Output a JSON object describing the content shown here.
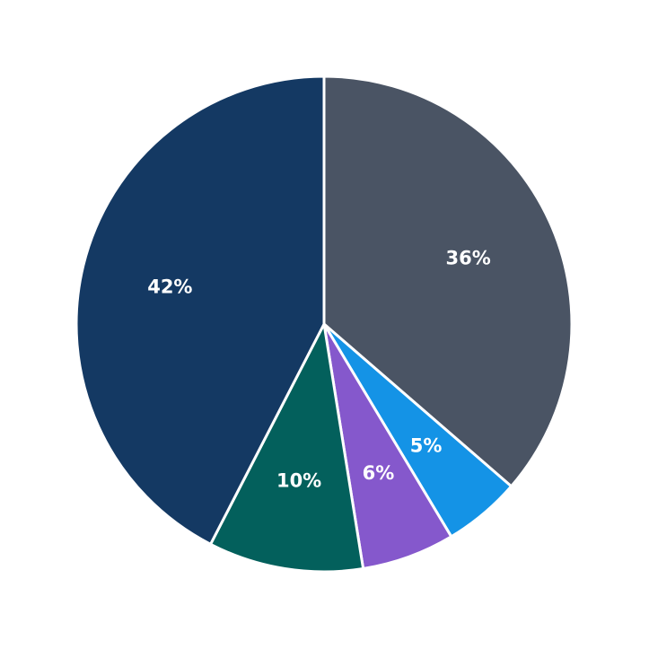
{
  "chart_data": {
    "type": "pie",
    "title": "",
    "start_angle": "12 o'clock",
    "direction": "clockwise",
    "slices": [
      {
        "label": "36%",
        "value": 36,
        "color": "#4a5464"
      },
      {
        "label": "5%",
        "value": 5,
        "color": "#1493e6"
      },
      {
        "label": "6%",
        "value": 6,
        "color": "#8558cc"
      },
      {
        "label": "10%",
        "value": 10,
        "color": "#03605c"
      },
      {
        "label": "42%",
        "value": 42,
        "color": "#143963"
      }
    ],
    "legend": "none"
  }
}
